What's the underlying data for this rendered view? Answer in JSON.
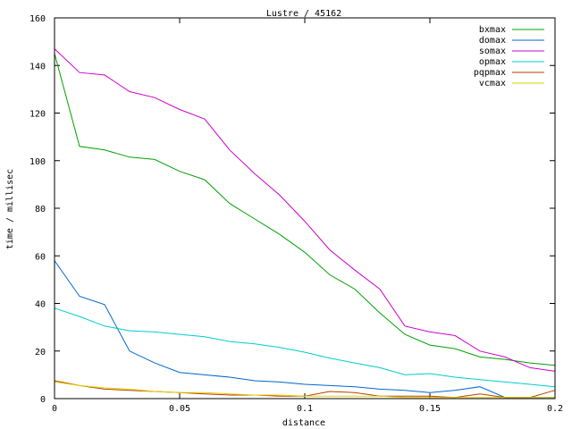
{
  "chart_data": {
    "type": "line",
    "title": "Lustre / 45162",
    "xlabel": "distance",
    "ylabel": "time / millisec",
    "xlim": [
      0,
      0.2
    ],
    "ylim": [
      0,
      160
    ],
    "x_ticks": [
      0,
      0.05,
      0.1,
      0.15,
      0.2
    ],
    "x_tick_labels": [
      "0",
      "0.05",
      "0.1",
      "0.15",
      "0.2"
    ],
    "y_ticks": [
      0,
      20,
      40,
      60,
      80,
      100,
      120,
      140,
      160
    ],
    "y_tick_labels": [
      "0",
      "20",
      "40",
      "60",
      "80",
      "100",
      "120",
      "140",
      "160"
    ],
    "grid": false,
    "legend_position": "top-right",
    "x": [
      0,
      0.01,
      0.02,
      0.03,
      0.04,
      0.05,
      0.06,
      0.07,
      0.08,
      0.09,
      0.1,
      0.11,
      0.12,
      0.13,
      0.14,
      0.15,
      0.16,
      0.17,
      0.18,
      0.19,
      0.2
    ],
    "series": [
      {
        "name": "bxmax",
        "color": "#00a000",
        "values": [
          145,
          106,
          104.5,
          101.5,
          100.5,
          95.5,
          92,
          82,
          75.5,
          69,
          61.5,
          52,
          46,
          36,
          27,
          22.5,
          21,
          17.5,
          16.5,
          15,
          14
        ]
      },
      {
        "name": "domax",
        "color": "#0066cc",
        "values": [
          58,
          43,
          39.5,
          20,
          15,
          11,
          10,
          9,
          7.5,
          7,
          6,
          5.5,
          5,
          4,
          3.5,
          2.5,
          3.5,
          5,
          0.5,
          0.5,
          0.5
        ]
      },
      {
        "name": "somax",
        "color": "#cc00cc",
        "values": [
          147,
          137,
          136,
          129,
          126.5,
          121.5,
          117.5,
          104.5,
          94.5,
          85.5,
          74.5,
          62.5,
          54,
          46,
          30.5,
          28,
          26.5,
          20,
          17.5,
          13,
          11.5
        ]
      },
      {
        "name": "opmax",
        "color": "#00cccc",
        "values": [
          38,
          34.5,
          30.5,
          28.5,
          28,
          27,
          26,
          24,
          23,
          21.5,
          19.5,
          17,
          15,
          13,
          10,
          10.5,
          9,
          8,
          7,
          6,
          5
        ]
      },
      {
        "name": "pqpmax",
        "color": "#b84000",
        "values": [
          7.5,
          5.5,
          4,
          3.5,
          3,
          2.5,
          2,
          1.5,
          1.5,
          1,
          1,
          3,
          2.5,
          1,
          1,
          1,
          0.5,
          2,
          0.5,
          0.5,
          3.5
        ]
      },
      {
        "name": "vcmax",
        "color": "#e0d000",
        "values": [
          7,
          5.5,
          4.5,
          4,
          3,
          2.5,
          2.5,
          2,
          1.5,
          1.5,
          1,
          1,
          1,
          1,
          0.5,
          0.5,
          0.5,
          0.5,
          0.5,
          0.5,
          0.5
        ]
      }
    ]
  }
}
